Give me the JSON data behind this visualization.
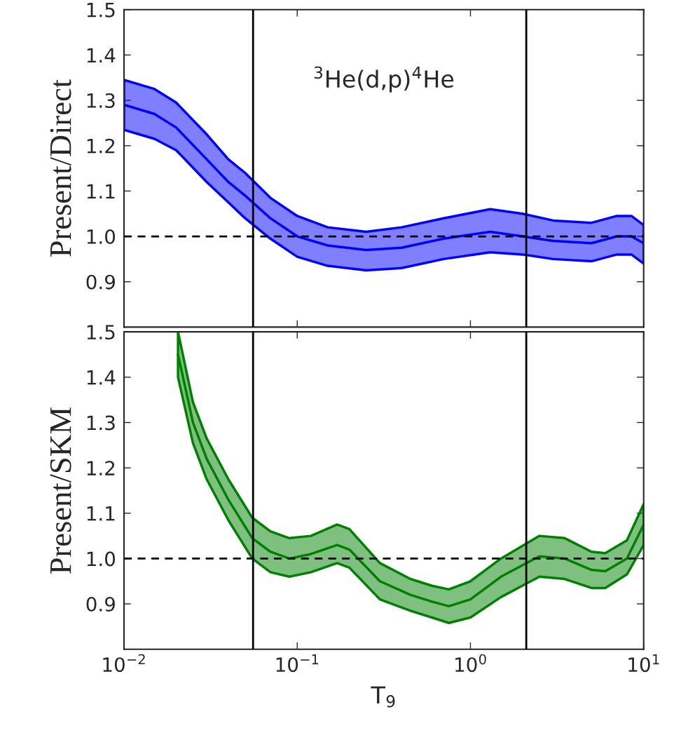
{
  "chart_data": [
    {
      "type": "line",
      "ylabel": "Present/Direct",
      "annotations": [
        "$^{3}$He(d,p)$^{4}$He"
      ],
      "log": "x",
      "grid": false,
      "tick_labels": "y",
      "line_style": "solid",
      "marker": "none",
      "xlim": [
        0.01,
        10
      ],
      "xticks": [
        0.01,
        0.1,
        1,
        10
      ],
      "ylim": [
        0.8,
        1.5
      ],
      "yticks": [
        0.9,
        {
          "value": 1,
          "label": "1.0"
        },
        1.1,
        1.2,
        1.3,
        1.4,
        1.5
      ],
      "ref_lines": [
        {
          "axis": "y",
          "value": 1.0,
          "color": "#000000",
          "line_style": "dashed"
        },
        {
          "axis": "x",
          "value": 0.0556,
          "color": "#000000",
          "line_style": "solid"
        },
        {
          "axis": "x",
          "value": 2.1,
          "color": "#000000",
          "line_style": "solid"
        }
      ],
      "series": [
        {
          "color": "#0000ff",
          "x": [
            0.01,
            0.015,
            0.02,
            0.03,
            0.04,
            0.05,
            0.07,
            0.1,
            0.15,
            0.25,
            0.4,
            0.7,
            1.3,
            2,
            3,
            5,
            7,
            8.5,
            10
          ],
          "values": [
            1.29,
            1.27,
            1.24,
            1.17,
            1.12,
            1.09,
            1.04,
            1.0,
            0.98,
            0.97,
            0.975,
            0.995,
            1.01,
            1.0,
            0.99,
            0.985,
            1.0,
            1.0,
            0.985
          ],
          "lower": [
            1.235,
            1.215,
            1.19,
            1.12,
            1.075,
            1.04,
            0.995,
            0.955,
            0.935,
            0.925,
            0.93,
            0.95,
            0.965,
            0.96,
            0.95,
            0.945,
            0.96,
            0.96,
            0.94
          ],
          "upper": [
            1.345,
            1.325,
            1.295,
            1.225,
            1.17,
            1.14,
            1.085,
            1.045,
            1.02,
            1.01,
            1.02,
            1.04,
            1.06,
            1.05,
            1.035,
            1.03,
            1.045,
            1.045,
            1.025
          ]
        }
      ]
    },
    {
      "type": "line",
      "ylabel": "Present/SKM",
      "xlabel": "T$_{9}$",
      "log": "x",
      "grid": false,
      "line_style": "solid",
      "marker": "none",
      "xlim": [
        0.01,
        10
      ],
      "xticks": [
        {
          "value": 0.01,
          "label": "10$^{−2}$"
        },
        {
          "value": 0.1,
          "label": "10$^{−1}$"
        },
        {
          "value": 1,
          "label": "10$^{0}$"
        },
        {
          "value": 10,
          "label": "10$^{1}$"
        }
      ],
      "ylim": [
        0.8,
        1.5
      ],
      "yticks": [
        0.9,
        {
          "value": 1,
          "label": "1.0"
        },
        1.1,
        1.2,
        1.3,
        1.4,
        1.5
      ],
      "ref_lines": [
        {
          "axis": "y",
          "value": 1.0,
          "color": "#000000",
          "line_style": "dashed"
        },
        {
          "axis": "x",
          "value": 0.0556,
          "color": "#000000",
          "line_style": "solid"
        },
        {
          "axis": "x",
          "value": 2.1,
          "color": "#000000",
          "line_style": "solid"
        }
      ],
      "series": [
        {
          "color": "#008000",
          "x": [
            0.0205,
            0.025,
            0.03,
            0.04,
            0.055,
            0.07,
            0.09,
            0.12,
            0.17,
            0.2,
            0.3,
            0.45,
            0.6,
            0.75,
            1.0,
            1.5,
            2.5,
            3.5,
            5,
            6,
            8,
            10
          ],
          "values": [
            1.45,
            1.3,
            1.22,
            1.13,
            1.045,
            1.015,
            1.0,
            1.01,
            1.03,
            1.02,
            0.95,
            0.92,
            0.905,
            0.895,
            0.91,
            0.96,
            1.005,
            1.0,
            0.975,
            0.972,
            1.0,
            1.075
          ],
          "lower": [
            1.4,
            1.255,
            1.175,
            1.085,
            1.0,
            0.97,
            0.96,
            0.97,
            0.99,
            0.98,
            0.91,
            0.885,
            0.87,
            0.858,
            0.87,
            0.915,
            0.96,
            0.955,
            0.935,
            0.935,
            0.965,
            1.03
          ],
          "upper": [
            1.5,
            1.345,
            1.265,
            1.175,
            1.09,
            1.06,
            1.045,
            1.05,
            1.075,
            1.065,
            0.99,
            0.955,
            0.94,
            0.932,
            0.95,
            1.0,
            1.05,
            1.045,
            1.015,
            1.012,
            1.04,
            1.12
          ]
        }
      ]
    }
  ]
}
